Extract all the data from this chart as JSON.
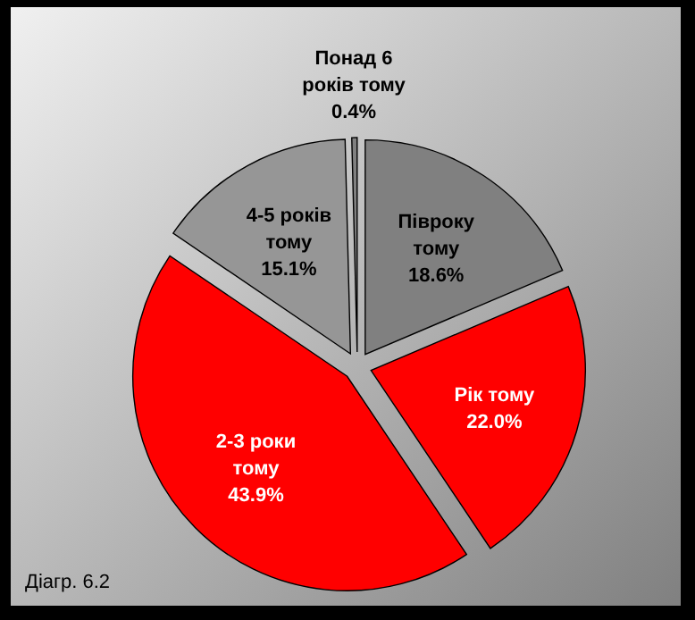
{
  "chart_data": {
    "type": "pie",
    "categories": [
      "Півроку тому",
      "Рік тому",
      "2-3 роки тому",
      "4-5 років тому",
      "Понад 6 років тому"
    ],
    "values": [
      18.6,
      22.0,
      43.9,
      15.1,
      0.4
    ],
    "value_labels": [
      "18.6%",
      "22.0%",
      "43.9%",
      "15.1%",
      "0.4%"
    ],
    "colors": [
      "#808080",
      "#ff0000",
      "#ff0000",
      "#969696",
      "#808080"
    ],
    "annotations": [
      "Діагр. 6.2"
    ]
  }
}
